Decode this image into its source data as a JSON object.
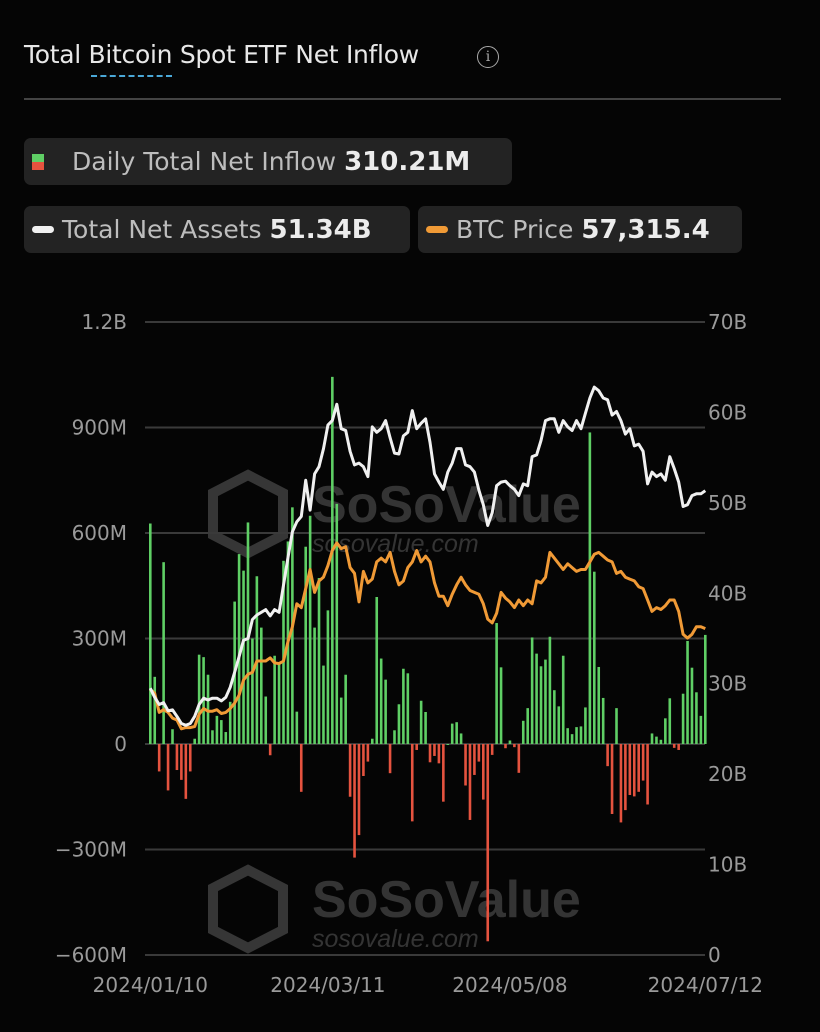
{
  "header": {
    "title_pre": "Total ",
    "title_underlined": "Bitcoin",
    "title_post": " Spot ETF Net Inflow",
    "info_icon": "info-circle-icon"
  },
  "legend": {
    "daily": {
      "label": "Daily Total Net Inflow",
      "value": "310.21M"
    },
    "assets": {
      "label": "Total Net Assets",
      "value": "51.34B"
    },
    "price": {
      "label": "BTC Price",
      "value": "57,315.4"
    }
  },
  "watermark": {
    "brand": "SoSoValue",
    "url": "sosovalue.com"
  },
  "colors": {
    "inflow": "#5fcf65",
    "outflow": "#e5533f",
    "assets": "#f0f0f0",
    "price": "#f09a36",
    "grid": "#3a3a3a"
  },
  "chart_data": {
    "type": "bar+line",
    "title": "Total Bitcoin Spot ETF Net Inflow",
    "left_axis": {
      "ticks": [
        "1.2B",
        "900M",
        "600M",
        "300M",
        "0",
        "−300M",
        "−600M"
      ],
      "ylim": [
        -600,
        1200
      ],
      "unit": "M"
    },
    "right_axis": {
      "ticks": [
        "70B",
        "60B",
        "50B",
        "40B",
        "30B",
        "20B",
        "10B",
        "0"
      ],
      "ylim": [
        0,
        70
      ],
      "unit": "B"
    },
    "x_ticks": [
      {
        "label": "2024/01/10",
        "index": 0
      },
      {
        "label": "2024/03/11",
        "index": 40
      },
      {
        "label": "2024/05/08",
        "index": 81
      },
      {
        "label": "2024/07/12",
        "index": 125
      }
    ],
    "grid": true,
    "series": [
      {
        "name": "Daily Total Net Inflow",
        "type": "bar",
        "axis": "left",
        "values": [
          627,
          191,
          -78,
          517,
          -132,
          42,
          -74,
          -102,
          -156,
          -78,
          15,
          254,
          247,
          197,
          39,
          80,
          68,
          34,
          120,
          405,
          540,
          493,
          630,
          300,
          477,
          331,
          135,
          -32,
          251,
          232,
          521,
          576,
          673,
          92,
          -136,
          561,
          649,
          331,
          472,
          223,
          380,
          1044,
          683,
          132,
          197,
          -150,
          -323,
          -259,
          -91,
          -50,
          15,
          418,
          243,
          183,
          -83,
          39,
          113,
          214,
          201,
          -220,
          -17,
          123,
          91,
          -52,
          -34,
          -55,
          -164,
          0,
          58,
          62,
          30,
          -118,
          -216,
          -88,
          -50,
          -158,
          -561,
          -31,
          344,
          218,
          -12,
          10,
          -9,
          -82,
          66,
          102,
          303,
          257,
          221,
          240,
          305,
          153,
          107,
          251,
          45,
          28,
          48,
          50,
          104,
          886,
          490,
          219,
          131,
          -63,
          -199,
          102,
          -223,
          -188,
          -145,
          -149,
          -136,
          -104,
          -172,
          30,
          21,
          12,
          73,
          130,
          -11,
          -17,
          143,
          293,
          217,
          147,
          80,
          310.21
        ]
      },
      {
        "name": "Total Net Assets",
        "type": "line",
        "axis": "right",
        "values": [
          29.5,
          28.5,
          27.7,
          27.9,
          27.0,
          27.1,
          26.4,
          25.6,
          25.4,
          25.6,
          26.4,
          27.7,
          28.4,
          28.2,
          28.4,
          28.4,
          28.1,
          28.5,
          29.6,
          31.3,
          33.0,
          34.8,
          35.0,
          37.1,
          37.6,
          37.9,
          38.2,
          37.5,
          38.2,
          37.9,
          40.9,
          43.9,
          46.8,
          47.9,
          48.5,
          52.5,
          49.2,
          53.2,
          54.0,
          56.0,
          58.6,
          59.1,
          60.9,
          58.2,
          58.0,
          55.7,
          54.2,
          54.4,
          54.0,
          52.9,
          58.4,
          57.8,
          58.2,
          59.1,
          57.2,
          55.5,
          55.4,
          57.4,
          57.8,
          60.2,
          58.2,
          58.8,
          59.3,
          56.7,
          53.2,
          52.3,
          51.5,
          53.4,
          54.4,
          56.0,
          56.0,
          54.2,
          54.0,
          53.4,
          51.4,
          49.8,
          47.5,
          48.9,
          51.9,
          52.3,
          52.4,
          51.9,
          51.5,
          50.8,
          52.1,
          51.9,
          55.1,
          55.3,
          56.9,
          59.1,
          59.3,
          59.3,
          57.8,
          59.1,
          58.4,
          58.0,
          59.1,
          58.2,
          59.9,
          61.6,
          62.8,
          62.4,
          61.6,
          61.4,
          59.7,
          60.1,
          59.1,
          57.6,
          58.2,
          56.3,
          56.5,
          55.7,
          52.1,
          53.4,
          52.9,
          53.2,
          52.5,
          55.1,
          53.8,
          52.3,
          49.6,
          49.8,
          50.8,
          51.0,
          51.0,
          51.34
        ]
      },
      {
        "name": "BTC Price",
        "type": "line",
        "axis": "hidden",
        "values": [
          46560,
          45890,
          42515,
          42990,
          42515,
          41510,
          41175,
          39620,
          39830,
          39830,
          40025,
          42180,
          43190,
          42730,
          42730,
          42990,
          42320,
          42515,
          43190,
          44195,
          45555,
          48240,
          49245,
          49580,
          51595,
          51595,
          51595,
          52140,
          51260,
          51135,
          51595,
          54965,
          57650,
          61695,
          61025,
          64380,
          67750,
          63710,
          65720,
          66410,
          68420,
          71110,
          72450,
          71445,
          71780,
          68090,
          67080,
          62030,
          67415,
          65385,
          66075,
          69095,
          69765,
          69095,
          70770,
          67415,
          65050,
          65720,
          68090,
          69095,
          71110,
          69095,
          70100,
          69095,
          65385,
          63035,
          63035,
          61355,
          63370,
          65055,
          66400,
          65055,
          64045,
          63710,
          63370,
          61690,
          59000,
          58325,
          60010,
          63710,
          62700,
          62030,
          61020,
          62365,
          61355,
          62365,
          61690,
          65730,
          65390,
          66400,
          70775,
          69760,
          68755,
          67745,
          68755,
          68080,
          67410,
          67745,
          67745,
          69090,
          70435,
          70775,
          70100,
          69425,
          69090,
          67070,
          67410,
          66400,
          66065,
          65730,
          64720,
          64380,
          62365,
          60345,
          61020,
          60680,
          61355,
          62365,
          62365,
          60345,
          56310,
          55635,
          56310,
          57655,
          57655,
          57315.4
        ]
      }
    ]
  }
}
